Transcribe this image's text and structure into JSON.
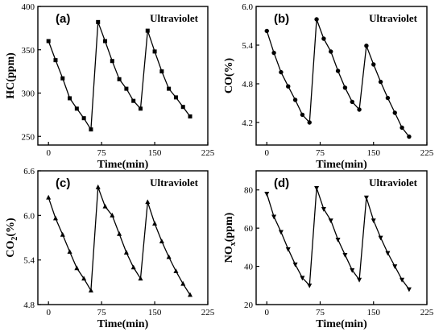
{
  "chart_data": [
    {
      "panel": "(a)",
      "condition": "Ultraviolet",
      "type": "line",
      "marker": "square",
      "xlabel": "Time(min)",
      "ylabel": "HC(ppm)",
      "xlim": [
        -15,
        225
      ],
      "ylim": [
        240,
        400
      ],
      "xticks": [
        0,
        75,
        150,
        225
      ],
      "yticks": [
        250,
        300,
        350,
        400
      ],
      "ytick_labels": [
        "250",
        "300",
        "350",
        "400"
      ],
      "x": [
        0,
        10,
        20,
        30,
        40,
        50,
        60,
        70,
        80,
        90,
        100,
        110,
        120,
        130,
        140,
        150,
        160,
        170,
        180,
        190,
        200
      ],
      "y": [
        360,
        338,
        317,
        294,
        282,
        271,
        258,
        382,
        360,
        337,
        316,
        305,
        291,
        282,
        372,
        348,
        325,
        305,
        295,
        284,
        273
      ]
    },
    {
      "panel": "(b)",
      "condition": "Ultraviolet",
      "type": "line",
      "marker": "circle",
      "xlabel": "Time(min)",
      "ylabel": "CO(%)",
      "xlim": [
        -15,
        225
      ],
      "ylim": [
        3.85,
        6.0
      ],
      "xticks": [
        0,
        75,
        150,
        225
      ],
      "yticks": [
        4.2,
        4.8,
        5.4,
        6.0
      ],
      "ytick_labels": [
        "4.2",
        "4.8",
        "5.4",
        "6.0"
      ],
      "x": [
        0,
        10,
        20,
        30,
        40,
        50,
        60,
        70,
        80,
        90,
        100,
        110,
        120,
        130,
        140,
        150,
        160,
        170,
        180,
        190,
        200
      ],
      "y": [
        5.62,
        5.28,
        4.98,
        4.76,
        4.55,
        4.32,
        4.2,
        5.8,
        5.5,
        5.3,
        5.0,
        4.74,
        4.52,
        4.4,
        5.39,
        5.1,
        4.83,
        4.58,
        4.35,
        4.12,
        3.98
      ]
    },
    {
      "panel": "(c)",
      "condition": "Ultraviolet",
      "type": "line",
      "marker": "triangle-up",
      "xlabel": "Time(min)",
      "ylabel": "CO2(%)",
      "ylabel_parts": [
        "CO",
        "2",
        "(%)"
      ],
      "xlim": [
        -15,
        225
      ],
      "ylim": [
        4.8,
        6.6
      ],
      "xticks": [
        0,
        75,
        150,
        225
      ],
      "yticks": [
        4.8,
        5.4,
        6.0,
        6.6
      ],
      "ytick_labels": [
        "4.8",
        "5.4",
        "6.0",
        "6.6"
      ],
      "x": [
        0,
        10,
        20,
        30,
        40,
        50,
        60,
        70,
        80,
        90,
        100,
        110,
        120,
        130,
        140,
        150,
        160,
        170,
        180,
        190,
        200
      ],
      "y": [
        6.24,
        5.96,
        5.74,
        5.51,
        5.29,
        5.15,
        4.99,
        6.38,
        6.12,
        6.0,
        5.75,
        5.5,
        5.3,
        5.15,
        6.18,
        5.89,
        5.65,
        5.44,
        5.25,
        5.08,
        4.93
      ]
    },
    {
      "panel": "(d)",
      "condition": "Ultraviolet",
      "type": "line",
      "marker": "triangle-down",
      "xlabel": "Time(min)",
      "ylabel": "NOx(ppm)",
      "ylabel_parts": [
        "NO",
        "x",
        "(ppm)"
      ],
      "xlim": [
        -15,
        225
      ],
      "ylim": [
        20,
        90
      ],
      "xticks": [
        0,
        75,
        150,
        225
      ],
      "yticks": [
        20,
        40,
        60,
        80
      ],
      "ytick_labels": [
        "20",
        "40",
        "60",
        "80"
      ],
      "x": [
        0,
        10,
        20,
        30,
        40,
        50,
        60,
        70,
        80,
        90,
        100,
        110,
        120,
        130,
        140,
        150,
        160,
        170,
        180,
        190,
        200
      ],
      "y": [
        78,
        66,
        58,
        49,
        41,
        34,
        30,
        81,
        70,
        64,
        54,
        46,
        38,
        33,
        76,
        64,
        55,
        47,
        40,
        33,
        28
      ]
    }
  ]
}
